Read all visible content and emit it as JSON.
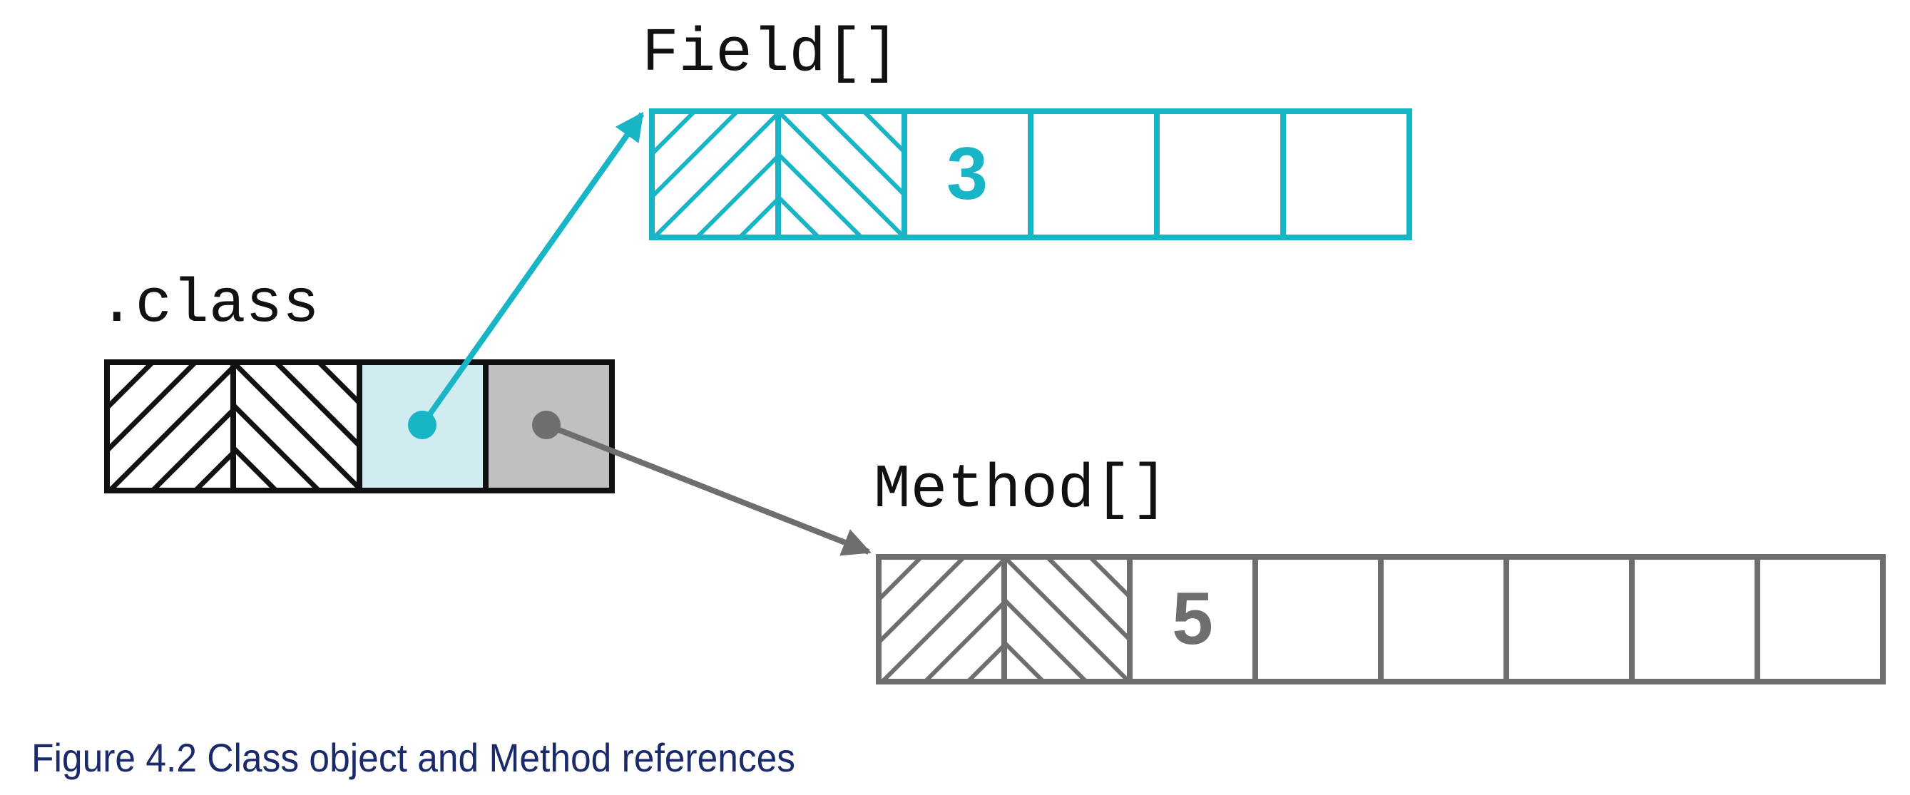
{
  "diagram": {
    "class_label": ".class",
    "field_label": "Field[]",
    "method_label": "Method[]",
    "field_count": "3",
    "method_count": "5"
  },
  "caption": "Figure 4.2 Class object and Method references",
  "colors": {
    "teal": "#17b5c5",
    "teal_fill": "#d0ecf1",
    "gray": "#6e6e6e",
    "gray_fill": "#c0c0c0",
    "black": "#111111",
    "caption": "#1b2a6b"
  }
}
